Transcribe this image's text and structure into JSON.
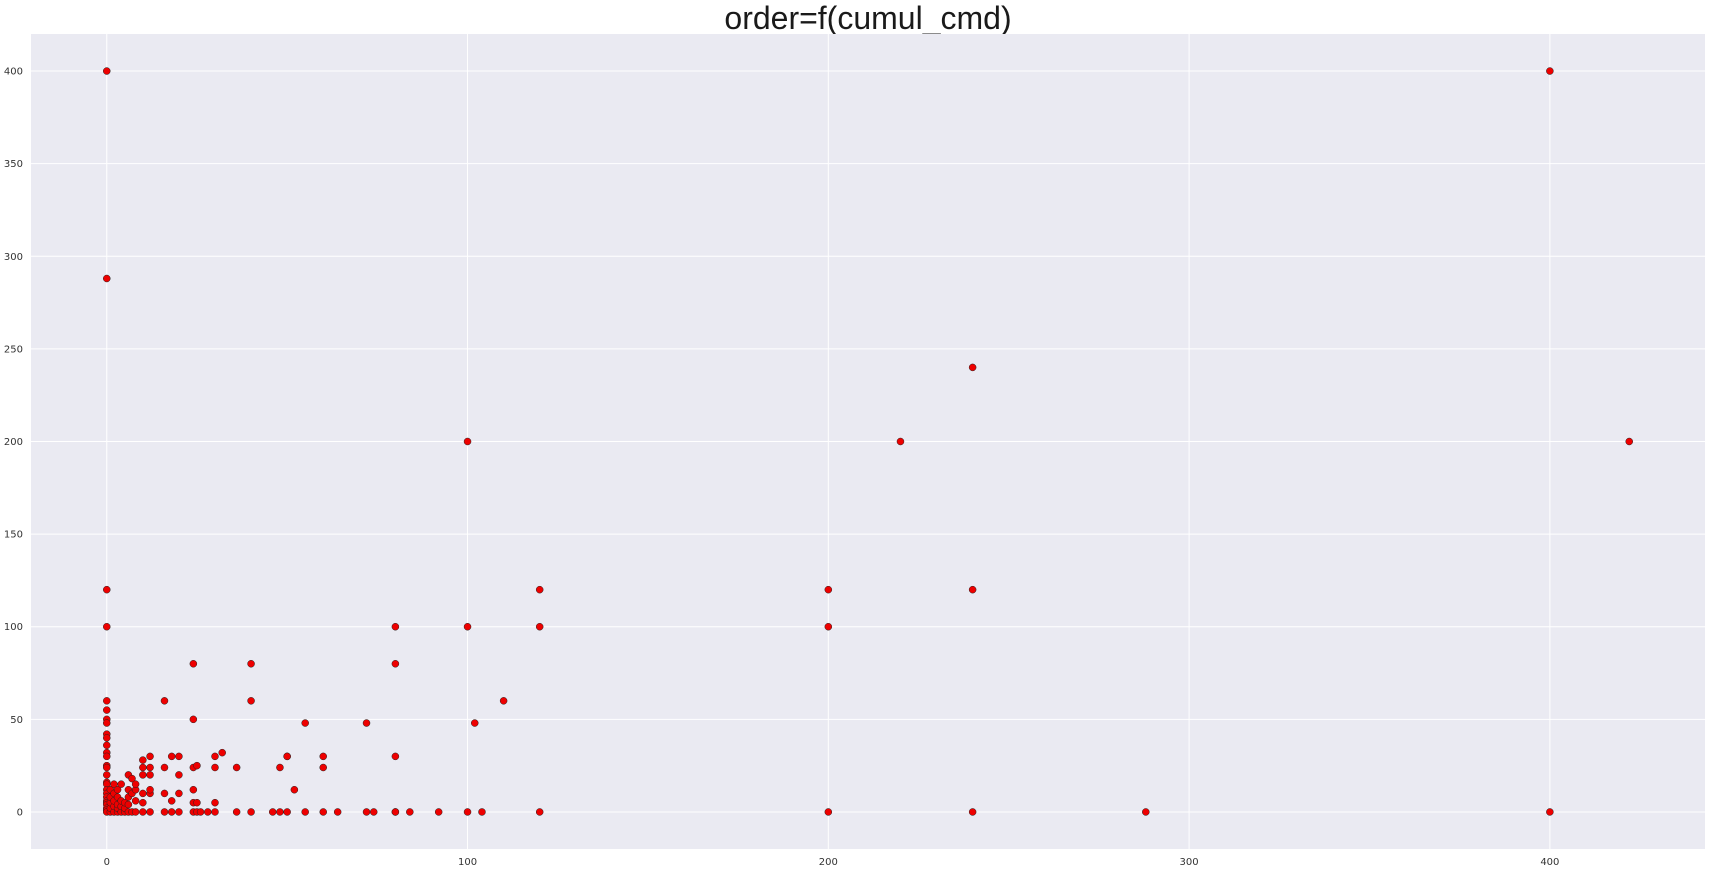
{
  "chart_data": {
    "type": "scatter",
    "title": "order=f(cumul_cmd)",
    "xlabel": "",
    "ylabel": "",
    "xlim": [
      -21,
      443
    ],
    "ylim": [
      -20,
      420
    ],
    "grid": true,
    "legend": "none",
    "x_ticks": [
      "0",
      "100",
      "200",
      "300",
      "400"
    ],
    "y_ticks": [
      "0",
      "50",
      "100",
      "150",
      "200",
      "250",
      "300",
      "350",
      "400"
    ],
    "colors": {
      "background": "#eaeaf2",
      "grid": "#ffffff",
      "marker": "#ee0000",
      "marker_edge": "#222222"
    },
    "series": [
      {
        "x": [
          0,
          0,
          0,
          0,
          0,
          0,
          0,
          0,
          0,
          0,
          0,
          0,
          0,
          0,
          0,
          0,
          0,
          0,
          0,
          0,
          0,
          0,
          0,
          0,
          0,
          0,
          0,
          1,
          1,
          1,
          1,
          1,
          2,
          2,
          2,
          2,
          2,
          3,
          3,
          3,
          3,
          3,
          4,
          4,
          4,
          4,
          5,
          5,
          5,
          6,
          6,
          6,
          6,
          6,
          7,
          7,
          7,
          8,
          8,
          8,
          8,
          10,
          10,
          10,
          10,
          10,
          10,
          12,
          12,
          12,
          12,
          12,
          12,
          16,
          16,
          16,
          16,
          18,
          18,
          18,
          20,
          20,
          20,
          20,
          24,
          24,
          24,
          24,
          24,
          24,
          25,
          25,
          25,
          26,
          28,
          30,
          30,
          30,
          30,
          32,
          36,
          36,
          40,
          40,
          40,
          46,
          48,
          48,
          50,
          50,
          50,
          52,
          55,
          55,
          60,
          60,
          60,
          64,
          72,
          72,
          74,
          80,
          80,
          80,
          80,
          80,
          84,
          92,
          100,
          100,
          100,
          102,
          104,
          110,
          120,
          120,
          120,
          200,
          200,
          200,
          220,
          240,
          240,
          240,
          288,
          400,
          400,
          422
        ],
        "y": [
          400,
          288,
          120,
          100,
          60,
          55,
          50,
          48,
          42,
          40,
          36,
          32,
          30,
          25,
          24,
          20,
          16,
          15,
          12,
          10,
          8,
          6,
          5,
          4,
          2,
          1,
          0,
          0,
          2,
          5,
          8,
          12,
          0,
          3,
          6,
          10,
          15,
          0,
          2,
          4,
          8,
          12,
          0,
          3,
          6,
          15,
          0,
          2,
          5,
          0,
          4,
          8,
          12,
          20,
          0,
          10,
          18,
          0,
          6,
          12,
          15,
          0,
          5,
          10,
          20,
          24,
          28,
          0,
          10,
          12,
          20,
          24,
          30,
          0,
          10,
          24,
          60,
          0,
          6,
          30,
          0,
          10,
          20,
          30,
          0,
          5,
          12,
          24,
          50,
          80,
          0,
          5,
          25,
          0,
          0,
          0,
          5,
          24,
          30,
          32,
          0,
          24,
          0,
          60,
          80,
          0,
          0,
          24,
          0,
          30,
          30,
          12,
          0,
          48,
          0,
          24,
          30,
          0,
          0,
          48,
          0,
          0,
          30,
          80,
          100,
          0,
          0,
          0,
          0,
          100,
          200,
          48,
          0,
          60,
          0,
          100,
          120,
          0,
          100,
          120,
          200,
          0,
          120,
          240,
          0,
          0,
          400,
          200
        ]
      }
    ]
  }
}
